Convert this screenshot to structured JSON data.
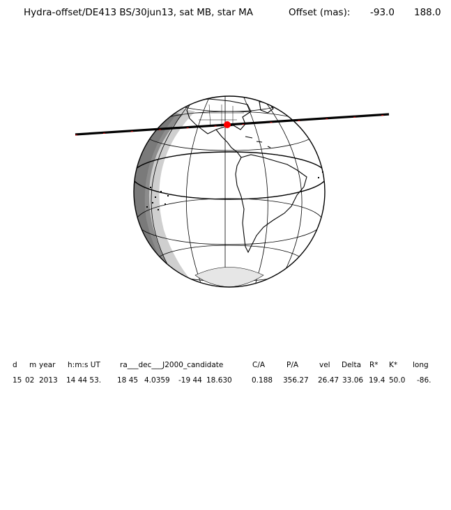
{
  "title": {
    "object": "Hydra-offset/DE413 BS/30jun13, sat MB, star MA",
    "offset_label": "Offset (mas):",
    "offset_1": "-93.0",
    "offset_2": "188.0"
  },
  "table": {
    "headers": [
      "d",
      "m",
      "year",
      "h:m:s UT",
      "ra___dec___J2000_candidate",
      "C/A",
      "P/A",
      "vel",
      "Delta",
      "R*",
      "K*",
      "long"
    ],
    "values": [
      "15",
      "02",
      "2013",
      "14 44 53.",
      "18 45",
      "4.0359",
      "-19 44",
      "18.630",
      "0.188",
      "356.27",
      "26.47",
      "33.06",
      "19.4",
      "50.0",
      "-86."
    ]
  },
  "map": {
    "colors": {
      "shadow_dark": "#8c8c8c",
      "shadow_light": "#cfcfcf",
      "track": "#000000",
      "track_marks": "#e00000",
      "center_point": "#ff0000"
    }
  }
}
